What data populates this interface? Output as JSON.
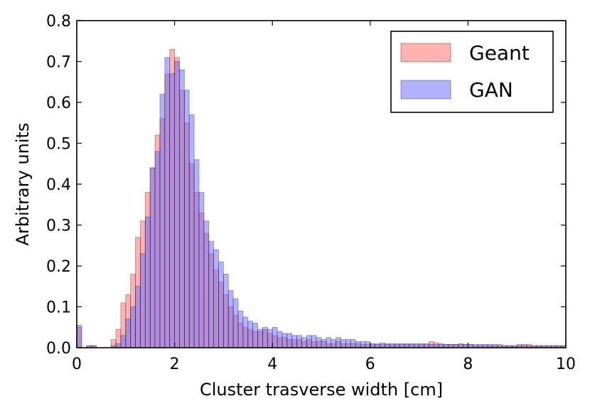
{
  "chart_data": {
    "type": "histogram",
    "title": "",
    "xlabel": "Cluster trasverse width [cm]",
    "ylabel": "Arbitrary units",
    "xlim": [
      0,
      10
    ],
    "ylim": [
      0,
      0.8
    ],
    "xticks": [
      0,
      2,
      4,
      6,
      8,
      10
    ],
    "yticks": [
      0.0,
      0.1,
      0.2,
      0.3,
      0.4,
      0.5,
      0.6,
      0.7,
      0.8
    ],
    "xtick_labels": [
      "0",
      "2",
      "4",
      "6",
      "8",
      "10"
    ],
    "ytick_labels": [
      "0.0",
      "0.1",
      "0.2",
      "0.3",
      "0.4",
      "0.5",
      "0.6",
      "0.7",
      "0.8"
    ],
    "bin_width": 0.1,
    "bin_start": 0,
    "legend_position": "top-right",
    "series": [
      {
        "name": "Geant",
        "color": "#ff6666",
        "values": [
          0.05,
          0.0,
          0.005,
          0.005,
          0.0,
          0.0,
          0.0,
          0.02,
          0.045,
          0.11,
          0.13,
          0.18,
          0.27,
          0.31,
          0.38,
          0.44,
          0.52,
          0.56,
          0.67,
          0.73,
          0.71,
          0.63,
          0.55,
          0.45,
          0.38,
          0.33,
          0.28,
          0.23,
          0.19,
          0.16,
          0.13,
          0.1,
          0.08,
          0.06,
          0.05,
          0.045,
          0.04,
          0.04,
          0.045,
          0.035,
          0.03,
          0.025,
          0.025,
          0.02,
          0.02,
          0.02,
          0.015,
          0.02,
          0.015,
          0.015,
          0.015,
          0.01,
          0.01,
          0.015,
          0.01,
          0.01,
          0.01,
          0.01,
          0.008,
          0.008,
          0.008,
          0.008,
          0.008,
          0.008,
          0.008,
          0.008,
          0.008,
          0.008,
          0.008,
          0.008,
          0.008,
          0.008,
          0.015,
          0.012,
          0.008,
          0.008,
          0.008,
          0.008,
          0.01,
          0.008,
          0.008,
          0.005,
          0.005,
          0.005,
          0.005,
          0.005,
          0.008,
          0.005,
          0.005,
          0.005,
          0.008,
          0.008,
          0.008,
          0.005,
          0.005,
          0.005,
          0.005,
          0.005,
          0.005,
          0.005
        ]
      },
      {
        "name": "GAN",
        "color": "#6666ff",
        "values": [
          0.055,
          0.0,
          0.005,
          0.005,
          0.0,
          0.0,
          0.0,
          0.005,
          0.01,
          0.03,
          0.07,
          0.1,
          0.15,
          0.23,
          0.32,
          0.44,
          0.48,
          0.62,
          0.71,
          0.67,
          0.7,
          0.68,
          0.63,
          0.57,
          0.46,
          0.38,
          0.31,
          0.26,
          0.24,
          0.21,
          0.18,
          0.14,
          0.12,
          0.09,
          0.075,
          0.065,
          0.06,
          0.045,
          0.05,
          0.045,
          0.05,
          0.04,
          0.035,
          0.035,
          0.03,
          0.03,
          0.025,
          0.03,
          0.03,
          0.025,
          0.02,
          0.025,
          0.02,
          0.025,
          0.02,
          0.02,
          0.02,
          0.015,
          0.015,
          0.015,
          0.01,
          0.01,
          0.012,
          0.01,
          0.01,
          0.01,
          0.01,
          0.01,
          0.01,
          0.01,
          0.01,
          0.01,
          0.008,
          0.008,
          0.01,
          0.008,
          0.008,
          0.008,
          0.008,
          0.008,
          0.008,
          0.008,
          0.008,
          0.008,
          0.008,
          0.008,
          0.005,
          0.005,
          0.005,
          0.005,
          0.005,
          0.005,
          0.005,
          0.005,
          0.005,
          0.005,
          0.005,
          0.005,
          0.005,
          0.005
        ]
      }
    ]
  }
}
